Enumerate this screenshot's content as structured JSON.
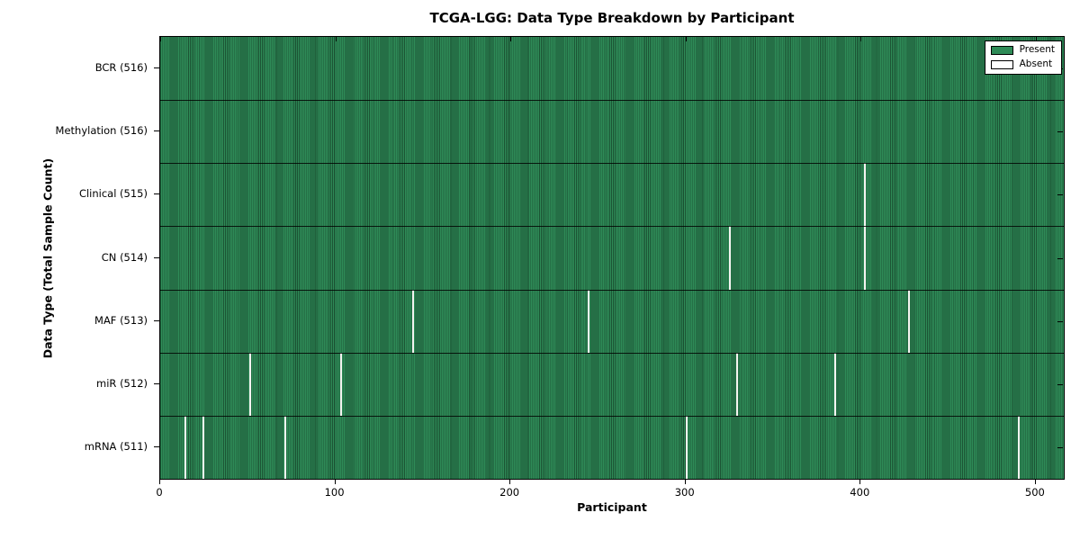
{
  "chart_data": {
    "type": "heatmap",
    "title": "TCGA-LGG: Data Type Breakdown by Participant",
    "xlabel": "Participant",
    "ylabel": "Data Type (Total Sample Count)",
    "xlim": [
      0,
      516
    ],
    "n_participants": 516,
    "x_ticks": [
      0,
      100,
      200,
      300,
      400,
      500
    ],
    "grid": false,
    "legend_position": "upper right",
    "legend": [
      {
        "label": "Present",
        "color": "#2e8b57"
      },
      {
        "label": "Absent",
        "color": "#ffffff"
      }
    ],
    "colors": {
      "present": "#2e8b57",
      "absent": "#ffffff",
      "frame": "#000000",
      "background": "#ffffff"
    },
    "rows": [
      {
        "data_type": "BCR",
        "label": "BCR (516)",
        "total": 516,
        "absent_participants": []
      },
      {
        "data_type": "Methylation",
        "label": "Methylation (516)",
        "total": 516,
        "absent_participants": []
      },
      {
        "data_type": "Clinical",
        "label": "Clinical (515)",
        "total": 515,
        "absent_participants": [
          402
        ]
      },
      {
        "data_type": "CN",
        "label": "CN (514)",
        "total": 514,
        "absent_participants": [
          325,
          402
        ]
      },
      {
        "data_type": "MAF",
        "label": "MAF (513)",
        "total": 513,
        "absent_participants": [
          144,
          244,
          427
        ]
      },
      {
        "data_type": "miR",
        "label": "miR (512)",
        "total": 512,
        "absent_participants": [
          51,
          103,
          329,
          385
        ]
      },
      {
        "data_type": "mRNA",
        "label": "mRNA (511)",
        "total": 511,
        "absent_participants": [
          14,
          24,
          71,
          300,
          490
        ]
      }
    ]
  }
}
